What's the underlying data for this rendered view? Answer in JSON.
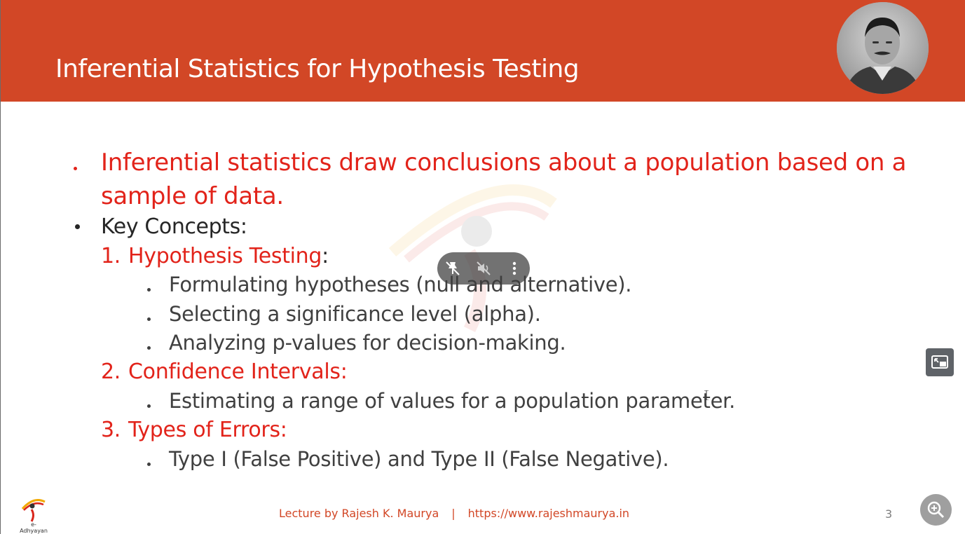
{
  "slide": {
    "title": "Inferential Statistics for Hypothesis Testing",
    "intro": {
      "line1": "Inferential statistics draw conclusions about a population based on a",
      "line2": "sample of data."
    },
    "key_concepts_label": "Key Concepts:",
    "sections": [
      {
        "number": "1.",
        "heading": "Hypothesis Testing",
        "heading_suffix": ":",
        "items": [
          "Formulating hypotheses (null and alternative).",
          "Selecting a significance level (alpha).",
          "Analyzing p-values for decision-making."
        ]
      },
      {
        "number": "2.",
        "heading": "Confidence Intervals:",
        "items": [
          "Estimating a range of values for a population parameter."
        ]
      },
      {
        "number": "3.",
        "heading": "Types of Errors:",
        "items": [
          "Type I (False Positive) and Type II (False Negative)."
        ]
      }
    ],
    "footer": {
      "lecturer": "Lecture by Rajesh K. Maurya",
      "separator": "|",
      "url": "https://www.rajeshmaurya.in"
    },
    "page_number": "3",
    "logo_label": "e-Adhyayan"
  },
  "colors": {
    "header": "#d24726",
    "accent_red": "#e2231a",
    "text_dark": "#262626",
    "text_body": "#404040",
    "footer_text": "#d24726"
  },
  "video_overlay": {
    "icons": [
      "unpin-icon",
      "volume-muted-icon",
      "more-options-icon"
    ]
  },
  "controls": {
    "pip_icon": "picture-in-picture-icon",
    "zoom_icon": "zoom-in-icon"
  }
}
